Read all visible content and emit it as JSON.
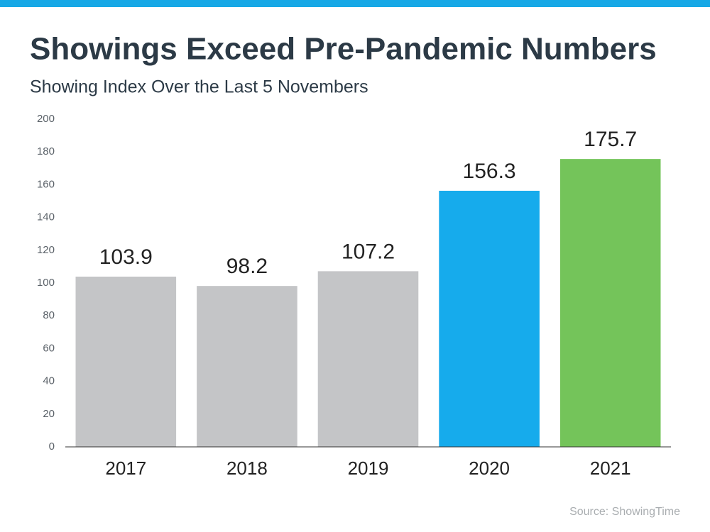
{
  "chart_data": {
    "type": "bar",
    "title": "Showings Exceed Pre-Pandemic Numbers",
    "subtitle": "Showing Index Over the Last 5 Novembers",
    "categories": [
      "2017",
      "2018",
      "2019",
      "2020",
      "2021"
    ],
    "values": [
      103.9,
      98.2,
      107.2,
      156.3,
      175.7
    ],
    "colors": [
      "#c4c5c7",
      "#c4c5c7",
      "#c4c5c7",
      "#16abec",
      "#74c45a"
    ],
    "ylim": [
      0,
      200
    ],
    "yticks": [
      0,
      20,
      40,
      60,
      80,
      100,
      120,
      140,
      160,
      180,
      200
    ],
    "grid": false,
    "source": "Source: ShowingTime"
  }
}
